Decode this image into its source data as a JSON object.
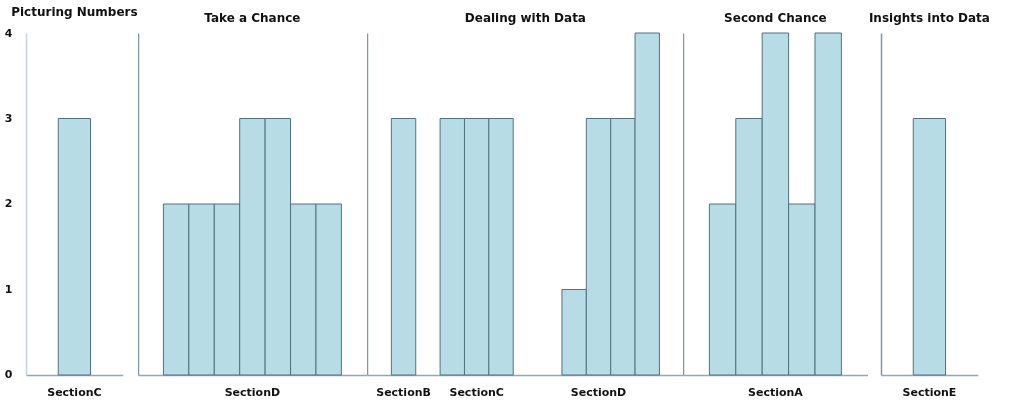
{
  "chart_data": [
    {
      "type": "bar",
      "title": "Picturing Numbers",
      "categories": [
        "SectionC"
      ],
      "values": [
        3
      ],
      "color": "#b7dce6",
      "ylim": [
        0,
        4
      ],
      "yticks": [
        0,
        1,
        2,
        3,
        4
      ]
    },
    {
      "type": "bar",
      "title": "Take a Chance",
      "categories": [
        null,
        null,
        null,
        "SectionD",
        null,
        null,
        null
      ],
      "values": [
        2,
        2,
        2,
        3,
        3,
        2,
        2
      ],
      "color": "#b7dce6",
      "ylim": [
        0,
        4
      ],
      "yticks": [
        0,
        1,
        2,
        3,
        4
      ],
      "tick_labels": "x"
    },
    {
      "type": "bar",
      "title": "Dealing with Data",
      "categories": [
        "SectionB",
        null,
        null,
        "SectionC",
        null,
        null,
        null,
        null,
        "SectionD",
        null,
        null
      ],
      "values": [
        3,
        null,
        3,
        3,
        3,
        null,
        null,
        1,
        3,
        3,
        4
      ],
      "color": "#b7dce6",
      "ylim": [
        0,
        4
      ],
      "yticks": [
        0,
        1,
        2,
        3,
        4
      ],
      "tick_labels": "x"
    },
    {
      "type": "bar",
      "title": "Second Chance",
      "categories": [
        null,
        null,
        "SectionA",
        null,
        null
      ],
      "values": [
        2,
        3,
        4,
        2,
        4
      ],
      "color": "#b7dce6",
      "ylim": [
        0,
        4
      ],
      "yticks": [
        0,
        1,
        2,
        3,
        4
      ],
      "tick_labels": "x"
    },
    {
      "type": "bar",
      "title": "Insights into Data",
      "categories": [
        "SectionE"
      ],
      "values": [
        3
      ],
      "color": "#b7dce6",
      "ylim": [
        0,
        4
      ],
      "yticks": [
        0,
        1,
        2,
        3,
        4
      ],
      "tick_labels": "x"
    }
  ]
}
